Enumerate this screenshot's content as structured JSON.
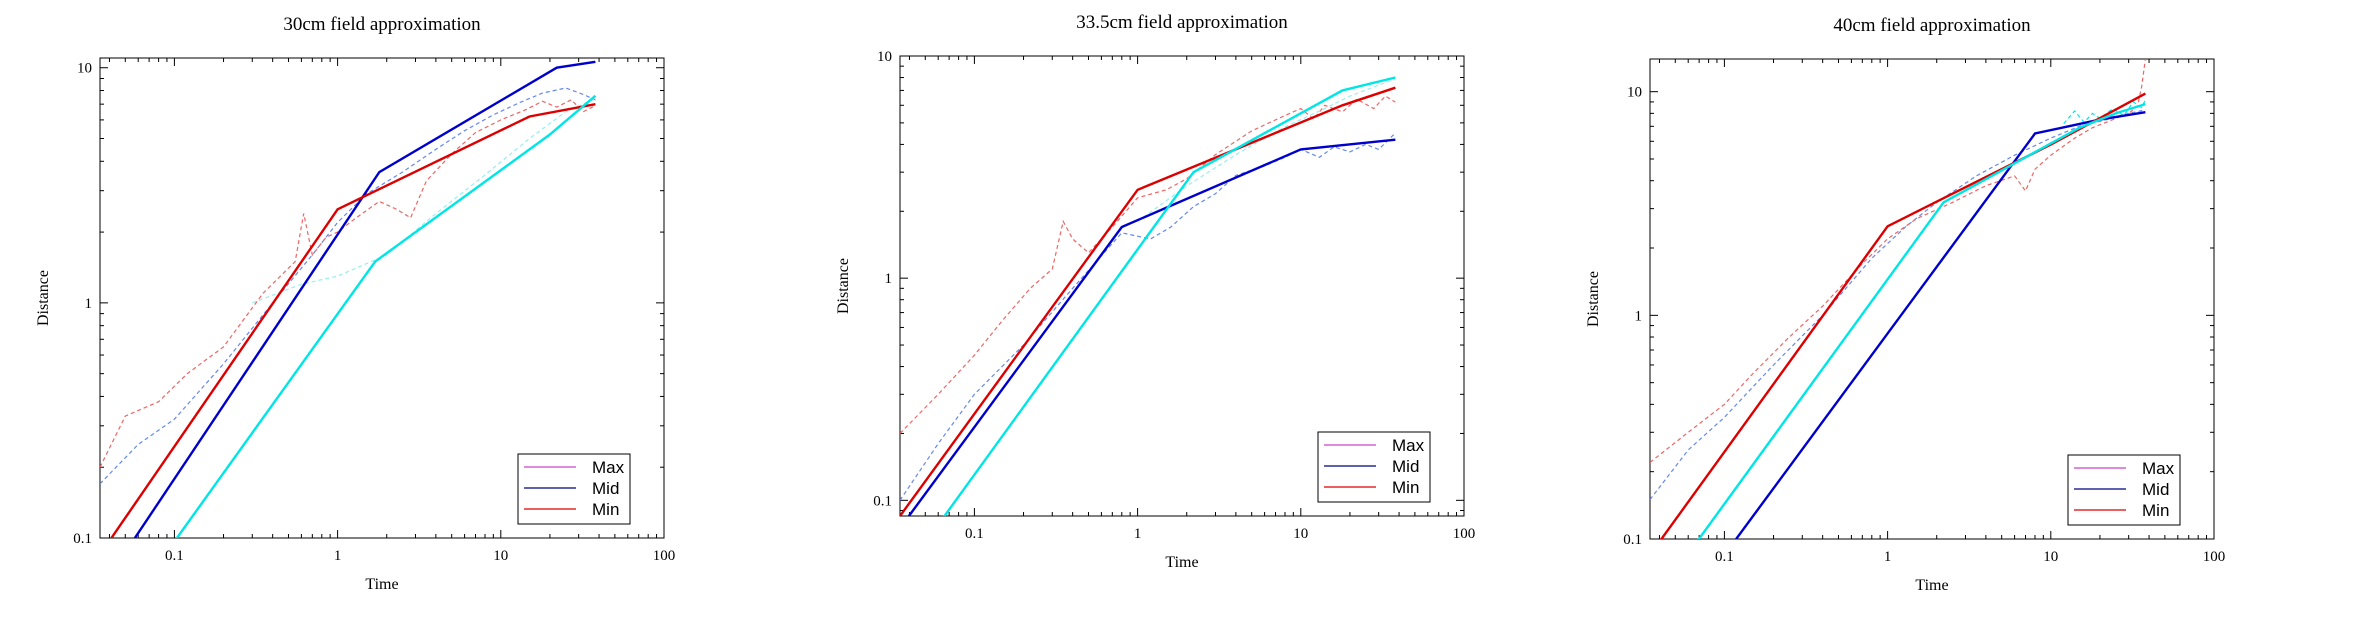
{
  "chart_data": [
    {
      "type": "line",
      "title": "30cm field approximation",
      "xlabel": "Time",
      "ylabel": "Distance",
      "xscale": "log",
      "yscale": "log",
      "xlim": [
        0.035,
        100
      ],
      "ylim": [
        0.1,
        11
      ],
      "xticks": [
        0.1,
        1,
        10,
        100
      ],
      "xtick_labels": [
        "0.1",
        "1",
        "10",
        "100"
      ],
      "yticks": [
        0.1,
        1,
        10
      ],
      "ytick_labels": [
        "0.1",
        "1",
        "10"
      ],
      "legend": {
        "position": "bottom-right",
        "entries": [
          {
            "label": "Max",
            "color": "#cc44cc"
          },
          {
            "label": "Mid",
            "color": "#000080"
          },
          {
            "label": "Min",
            "color": "#dd0000"
          }
        ]
      },
      "series": [
        {
          "color": "#0000cc",
          "style": "solid",
          "x": [
            0.035,
            1.8,
            22,
            38
          ],
          "y": [
            0.06,
            3.6,
            10.0,
            10.6
          ]
        },
        {
          "color": "#dd0000",
          "style": "solid",
          "x": [
            0.035,
            1.0,
            15,
            38
          ],
          "y": [
            0.085,
            2.5,
            6.2,
            7.0
          ]
        },
        {
          "color": "#00e5e5",
          "style": "solid",
          "x": [
            0.035,
            1.7,
            20,
            38
          ],
          "y": [
            0.035,
            1.5,
            5.2,
            7.6
          ]
        },
        {
          "color": "#6688ee",
          "style": "dashed",
          "x": [
            0.035,
            0.06,
            0.1,
            0.2,
            0.4,
            0.7,
            1.0,
            1.5,
            2.5,
            4,
            6,
            9,
            13,
            18,
            25,
            32,
            38
          ],
          "y": [
            0.17,
            0.25,
            0.32,
            0.55,
            1.0,
            1.6,
            2.2,
            2.9,
            3.6,
            4.5,
            5.4,
            6.3,
            7.1,
            7.8,
            8.2,
            7.7,
            7.3
          ]
        },
        {
          "color": "#ee6666",
          "style": "dashed",
          "x": [
            0.035,
            0.05,
            0.08,
            0.12,
            0.2,
            0.35,
            0.55,
            0.62,
            0.7,
            0.85,
            1.0,
            1.3,
            1.8,
            2.3,
            2.8,
            3.5,
            5,
            7,
            10,
            14,
            18,
            22,
            27,
            32,
            38
          ],
          "y": [
            0.2,
            0.33,
            0.38,
            0.5,
            0.65,
            1.1,
            1.5,
            2.4,
            1.6,
            1.9,
            2.0,
            2.3,
            2.7,
            2.5,
            2.3,
            3.3,
            4.3,
            5.3,
            6.0,
            6.6,
            7.2,
            6.8,
            7.3,
            6.5,
            6.9
          ]
        },
        {
          "color": "#99eeee",
          "style": "dashed",
          "x": [
            0.3,
            0.6,
            1.0,
            2,
            4,
            8,
            15,
            25,
            38
          ],
          "y": [
            1.0,
            1.2,
            1.3,
            1.6,
            2.4,
            3.5,
            5.0,
            6.5,
            7.4
          ]
        }
      ]
    },
    {
      "type": "line",
      "title": "33.5cm field approximation",
      "xlabel": "Time",
      "ylabel": "Distance",
      "xscale": "log",
      "yscale": "log",
      "xlim": [
        0.035,
        100
      ],
      "ylim": [
        0.085,
        10
      ],
      "xticks": [
        0.1,
        1,
        10,
        100
      ],
      "xtick_labels": [
        "0.1",
        "1",
        "10",
        "100"
      ],
      "yticks": [
        0.1,
        1,
        10
      ],
      "ytick_labels": [
        "0.1",
        "1",
        "10"
      ],
      "legend": {
        "position": "bottom-right",
        "entries": [
          {
            "label": "Max",
            "color": "#cc44cc"
          },
          {
            "label": "Mid",
            "color": "#000080"
          },
          {
            "label": "Min",
            "color": "#dd0000"
          }
        ]
      },
      "series": [
        {
          "color": "#0000cc",
          "style": "solid",
          "x": [
            0.035,
            0.8,
            10,
            38
          ],
          "y": [
            0.075,
            1.7,
            3.8,
            4.2
          ]
        },
        {
          "color": "#dd0000",
          "style": "solid",
          "x": [
            0.035,
            1.0,
            18,
            38
          ],
          "y": [
            0.085,
            2.5,
            6.0,
            7.2
          ]
        },
        {
          "color": "#00e5e5",
          "style": "solid",
          "x": [
            0.035,
            2.2,
            18,
            38
          ],
          "y": [
            0.045,
            3.0,
            7.0,
            8.0
          ]
        },
        {
          "color": "#6688ee",
          "style": "dashed",
          "x": [
            0.035,
            0.06,
            0.1,
            0.2,
            0.4,
            0.8,
            1.2,
            1.6,
            2.2,
            3,
            4,
            6,
            8,
            10,
            13,
            16,
            20,
            25,
            30,
            38
          ],
          "y": [
            0.1,
            0.18,
            0.3,
            0.5,
            0.9,
            1.6,
            1.5,
            1.7,
            2.1,
            2.4,
            2.9,
            3.2,
            3.5,
            3.8,
            3.5,
            3.9,
            3.7,
            4.0,
            3.8,
            4.5
          ]
        },
        {
          "color": "#ee6666",
          "style": "dashed",
          "x": [
            0.035,
            0.06,
            0.1,
            0.15,
            0.22,
            0.3,
            0.35,
            0.4,
            0.5,
            0.7,
            1.0,
            1.5,
            2,
            3,
            5,
            8,
            10,
            12,
            14,
            18,
            22,
            28,
            33,
            38
          ],
          "y": [
            0.2,
            0.3,
            0.45,
            0.65,
            0.9,
            1.1,
            1.8,
            1.5,
            1.3,
            1.7,
            2.3,
            2.5,
            2.8,
            3.6,
            4.6,
            5.4,
            5.8,
            5.2,
            6.0,
            5.6,
            6.4,
            5.8,
            6.6,
            6.2
          ]
        },
        {
          "color": "#99eeee",
          "style": "dashed",
          "x": [
            1.0,
            2,
            4,
            8,
            14,
            20,
            30,
            38
          ],
          "y": [
            1.8,
            2.6,
            3.6,
            4.8,
            5.8,
            6.6,
            7.4,
            7.9
          ]
        }
      ]
    },
    {
      "type": "line",
      "title": "40cm field approximation",
      "xlabel": "Time",
      "ylabel": "Distance",
      "xscale": "log",
      "yscale": "log",
      "xlim": [
        0.035,
        100
      ],
      "ylim": [
        0.1,
        14
      ],
      "xticks": [
        0.1,
        1,
        10,
        100
      ],
      "xtick_labels": [
        "0.1",
        "1",
        "10",
        "100"
      ],
      "yticks": [
        0.1,
        1,
        10
      ],
      "ytick_labels": [
        "0.1",
        "1",
        "10"
      ],
      "legend": {
        "position": "bottom-right",
        "entries": [
          {
            "label": "Max",
            "color": "#cc44cc"
          },
          {
            "label": "Mid",
            "color": "#000080"
          },
          {
            "label": "Min",
            "color": "#dd0000"
          }
        ]
      },
      "series": [
        {
          "color": "#0000cc",
          "style": "solid",
          "x": [
            0.035,
            8,
            20,
            38
          ],
          "y": [
            0.03,
            6.5,
            7.5,
            8.1
          ]
        },
        {
          "color": "#dd0000",
          "style": "solid",
          "x": [
            0.035,
            1.0,
            2.5,
            10,
            38
          ],
          "y": [
            0.085,
            2.5,
            3.5,
            5.8,
            9.8
          ]
        },
        {
          "color": "#00e5e5",
          "style": "solid",
          "x": [
            0.035,
            2.2,
            15,
            25,
            38
          ],
          "y": [
            0.05,
            3.2,
            6.9,
            8.0,
            8.8
          ]
        },
        {
          "color": "#6688ee",
          "style": "dashed",
          "x": [
            0.035,
            0.06,
            0.1,
            0.2,
            0.4,
            0.8,
            1.3,
            2,
            3.5,
            6,
            10,
            15,
            22,
            30,
            38
          ],
          "y": [
            0.15,
            0.25,
            0.35,
            0.6,
            1.0,
            1.8,
            2.5,
            3.2,
            4.2,
            5.2,
            6.2,
            7.0,
            7.5,
            8.0,
            8.3
          ]
        },
        {
          "color": "#ee6666",
          "style": "dashed",
          "x": [
            0.035,
            0.06,
            0.1,
            0.15,
            0.25,
            0.4,
            0.7,
            1.0,
            1.5,
            2.5,
            4,
            6,
            7,
            8,
            10,
            14,
            18,
            24,
            30,
            34,
            36,
            38
          ],
          "y": [
            0.22,
            0.3,
            0.4,
            0.55,
            0.8,
            1.1,
            1.7,
            2.2,
            2.7,
            3.2,
            3.8,
            4.2,
            3.6,
            4.5,
            5.2,
            6.2,
            6.9,
            7.5,
            8.0,
            8.6,
            10.5,
            14
          ]
        },
        {
          "color": "#00e5e5",
          "style": "dashed",
          "x": [
            12,
            14,
            16,
            18,
            20,
            24,
            28,
            32,
            36,
            38
          ],
          "y": [
            7.2,
            8.2,
            7.3,
            8.0,
            7.6,
            8.4,
            7.8,
            9.0,
            8.5,
            9.2
          ]
        }
      ]
    }
  ]
}
